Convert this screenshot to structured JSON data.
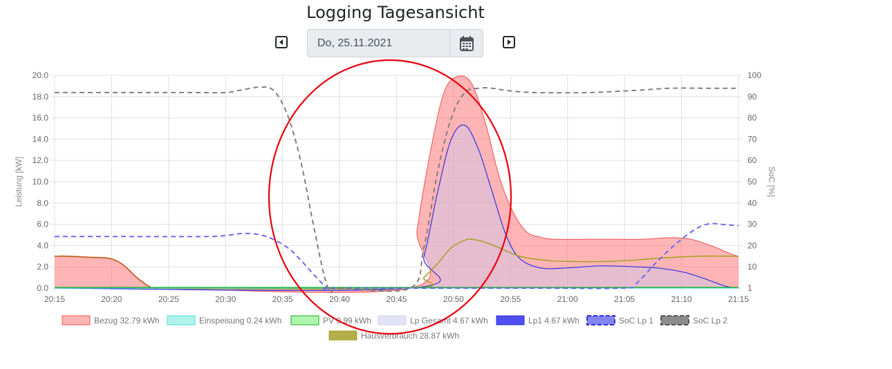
{
  "page": {
    "title": "Logging Tagesansicht",
    "date_value": "Do, 25.11.2021",
    "prev_icon": "caret-left-square-icon",
    "next_icon": "caret-right-square-icon",
    "calendar_icon": "calendar-icon"
  },
  "chart_data": {
    "type": "area",
    "title": "",
    "ylabel": "Leistung [kW]",
    "y2label": "SoC [%]",
    "ylim": [
      0,
      20
    ],
    "y2lim": [
      1,
      100
    ],
    "x_tick_labels": [
      "20:15",
      "20:20",
      "20:25",
      "20:30",
      "20:35",
      "20:40",
      "20:45",
      "20:50",
      "20:55",
      "21:00",
      "21:05",
      "21:10",
      "21:15"
    ],
    "y_tick_labels": [
      "0.0",
      "2.0",
      "4.0",
      "6.0",
      "8.0",
      "10.0",
      "12.0",
      "14.0",
      "16.0",
      "18.0",
      "20.0"
    ],
    "y2_tick_labels": [
      "1",
      "10",
      "20",
      "30",
      "40",
      "50",
      "60",
      "70",
      "80",
      "90",
      "100"
    ],
    "grid": true,
    "legend_position": "bottom",
    "colors": {
      "bezug": "#ff6b6b",
      "einspeisung": "#40e0d0",
      "pv": "#22aa22",
      "lp_gesamt": "#c8c8f0",
      "lp1": "#3030e0",
      "soc1": "#6a6aef",
      "soc2": "#808080",
      "haus": "#a6a02a"
    },
    "series": [
      {
        "name": "Bezug 32.79 kWh",
        "key": "bezug",
        "axis": "y",
        "values": [
          [
            0,
            3.0
          ],
          [
            2,
            3.0
          ],
          [
            5,
            2.9
          ],
          [
            8,
            2.8
          ],
          [
            10,
            2.2
          ],
          [
            12,
            1.0
          ],
          [
            14,
            0.1
          ],
          [
            15,
            0
          ],
          [
            52,
            0
          ],
          [
            53,
            5.5
          ],
          [
            55,
            13
          ],
          [
            57,
            18.5
          ],
          [
            59,
            19.9
          ],
          [
            61,
            19.2
          ],
          [
            63,
            15.5
          ],
          [
            65,
            10.5
          ],
          [
            67,
            7.2
          ],
          [
            69,
            5.3
          ],
          [
            71,
            4.8
          ],
          [
            73,
            4.6
          ],
          [
            78,
            4.6
          ],
          [
            86,
            4.6
          ],
          [
            90,
            4.75
          ],
          [
            93,
            4.6
          ],
          [
            96,
            4.0
          ],
          [
            99,
            3.2
          ],
          [
            100,
            3.0
          ]
        ]
      },
      {
        "name": "Einspeisung 0.24 kWh",
        "key": "einspeisung",
        "axis": "y",
        "values": [
          [
            0,
            0
          ],
          [
            100,
            0
          ]
        ]
      },
      {
        "name": "PV 0.99 kWh",
        "key": "pv",
        "axis": "y",
        "values": [
          [
            0,
            0.05
          ],
          [
            100,
            0.05
          ]
        ]
      },
      {
        "name": "Lp Gesamt 4.67 kWh",
        "key": "lp_gesamt",
        "axis": "y",
        "values": [
          [
            0,
            0
          ],
          [
            52,
            0
          ],
          [
            54,
            3
          ],
          [
            56,
            9
          ],
          [
            58,
            14
          ],
          [
            60,
            15.3
          ],
          [
            62,
            13
          ],
          [
            64,
            9
          ],
          [
            66,
            5
          ],
          [
            68,
            2.8
          ],
          [
            71,
            1.9
          ],
          [
            75,
            1.9
          ],
          [
            80,
            2.1
          ],
          [
            85,
            2.0
          ],
          [
            88,
            1.9
          ],
          [
            92,
            1.5
          ],
          [
            95,
            0.9
          ],
          [
            98,
            0.2
          ],
          [
            100,
            0
          ]
        ]
      },
      {
        "name": "Lp1 4.67 kWh",
        "key": "lp1",
        "axis": "y",
        "values": [
          [
            0,
            0
          ],
          [
            52,
            0
          ],
          [
            54,
            3
          ],
          [
            56,
            9
          ],
          [
            58,
            14
          ],
          [
            60,
            15.3
          ],
          [
            62,
            13
          ],
          [
            64,
            9
          ],
          [
            66,
            5
          ],
          [
            68,
            2.8
          ],
          [
            71,
            1.9
          ],
          [
            75,
            1.9
          ],
          [
            80,
            2.1
          ],
          [
            85,
            2.0
          ],
          [
            88,
            1.9
          ],
          [
            92,
            1.5
          ],
          [
            95,
            0.9
          ],
          [
            98,
            0.2
          ],
          [
            100,
            0
          ]
        ]
      },
      {
        "name": "SoC Lp 1",
        "key": "soc1",
        "axis": "y2",
        "dashed": true,
        "values": [
          [
            0,
            25
          ],
          [
            10,
            25
          ],
          [
            22,
            25
          ],
          [
            25,
            25.5
          ],
          [
            28,
            26.5
          ],
          [
            31,
            25
          ],
          [
            34,
            20
          ],
          [
            36,
            14
          ],
          [
            38,
            7
          ],
          [
            40,
            1
          ],
          [
            42,
            0.5
          ],
          [
            70,
            0.5
          ],
          [
            83,
            0.5
          ],
          [
            85,
            3
          ],
          [
            88,
            13
          ],
          [
            91,
            22
          ],
          [
            94,
            29
          ],
          [
            96,
            31
          ],
          [
            98,
            30.5
          ],
          [
            100,
            30
          ]
        ]
      },
      {
        "name": "SoC Lp 2",
        "key": "soc2",
        "axis": "y2",
        "dashed": true,
        "values": [
          [
            0,
            92
          ],
          [
            10,
            92
          ],
          [
            20,
            92
          ],
          [
            25,
            92
          ],
          [
            27,
            93
          ],
          [
            30,
            94.5
          ],
          [
            32,
            93
          ],
          [
            34,
            82
          ],
          [
            36,
            60
          ],
          [
            38,
            28
          ],
          [
            40,
            1
          ],
          [
            42,
            0.5
          ],
          [
            52,
            0.5
          ],
          [
            54,
            20
          ],
          [
            56,
            55
          ],
          [
            58,
            80
          ],
          [
            60,
            92
          ],
          [
            62,
            94
          ],
          [
            64,
            94
          ],
          [
            66,
            93
          ],
          [
            70,
            92
          ],
          [
            78,
            92
          ],
          [
            85,
            93
          ],
          [
            90,
            94
          ],
          [
            95,
            94
          ],
          [
            100,
            94
          ]
        ]
      },
      {
        "name": "Hausverbrauch 28.87 kWh",
        "key": "haus",
        "axis": "y",
        "values": [
          [
            0,
            3.0
          ],
          [
            2,
            3.0
          ],
          [
            5,
            2.9
          ],
          [
            8,
            2.8
          ],
          [
            10,
            2.2
          ],
          [
            12,
            1.0
          ],
          [
            14,
            0.1
          ],
          [
            15,
            0
          ],
          [
            52,
            0
          ],
          [
            54,
            1.0
          ],
          [
            56,
            2.3
          ],
          [
            58,
            3.8
          ],
          [
            60,
            4.5
          ],
          [
            61,
            4.6
          ],
          [
            63,
            4.3
          ],
          [
            65,
            3.8
          ],
          [
            68,
            3.0
          ],
          [
            72,
            2.6
          ],
          [
            76,
            2.5
          ],
          [
            80,
            2.5
          ],
          [
            84,
            2.6
          ],
          [
            88,
            2.8
          ],
          [
            94,
            3.0
          ],
          [
            100,
            3.0
          ]
        ]
      }
    ]
  }
}
